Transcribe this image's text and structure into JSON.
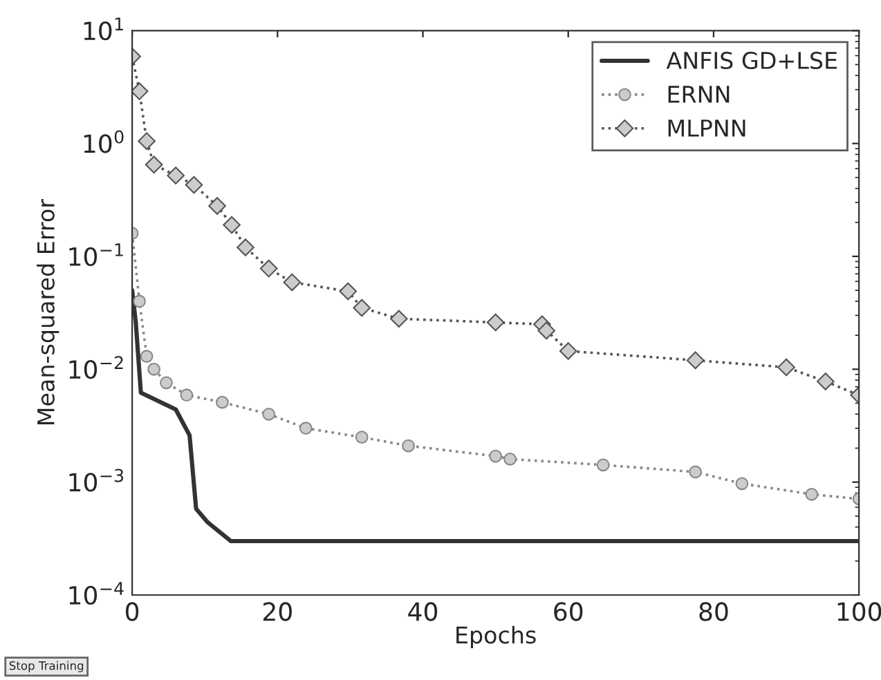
{
  "chart_data": {
    "type": "line",
    "xlabel": "Epochs",
    "ylabel": "Mean-squared Error",
    "log": "y",
    "xlim": [
      0,
      100
    ],
    "xticks": [
      0,
      20,
      40,
      60,
      80,
      100
    ],
    "ylim": [
      0.0001,
      10
    ],
    "yticks": [
      {
        "value": 0.0001,
        "label": "10$^{−4}$"
      },
      {
        "value": 0.001,
        "label": "10$^{−3}$"
      },
      {
        "value": 0.01,
        "label": "10$^{−2}$"
      },
      {
        "value": 0.1,
        "label": "10$^{−1}$"
      },
      {
        "value": 1,
        "label": "10$^{0}$"
      },
      {
        "value": 10,
        "label": "10$^{1}$"
      }
    ],
    "grid": false,
    "legend": "top right",
    "series": [
      {
        "name": "ANFIS GD+LSE",
        "color": "#333333",
        "marker": "none",
        "line_style": "solid",
        "x": [
          0,
          0.5,
          1.2,
          6,
          7.9,
          8.8,
          10.4,
          13.6,
          20,
          40,
          60,
          80,
          100
        ],
        "values": [
          0.05,
          0.026,
          0.0062,
          0.0044,
          0.0026,
          0.00058,
          0.00044,
          0.0003,
          0.0003,
          0.0003,
          0.0003,
          0.0003,
          0.0003
        ]
      },
      {
        "name": "ERNN",
        "color": "#888888",
        "marker": "circle",
        "line_style": "dotted",
        "x": [
          0,
          1,
          2,
          3,
          4.7,
          7.5,
          12.4,
          18.8,
          23.9,
          31.6,
          38,
          50,
          52,
          64.8,
          77.5,
          83.9,
          93.5,
          100
        ],
        "values": [
          0.16,
          0.04,
          0.013,
          0.01,
          0.0076,
          0.0059,
          0.0051,
          0.004,
          0.003,
          0.0025,
          0.0021,
          0.0017,
          0.0016,
          0.00142,
          0.00123,
          0.00097,
          0.00078,
          0.00071
        ]
      },
      {
        "name": "MLPNN",
        "color": "#555555",
        "marker": "diamond",
        "line_style": "dotted",
        "x": [
          0,
          1,
          2,
          3,
          6,
          8.5,
          11.7,
          13.7,
          15.6,
          18.8,
          22,
          29.7,
          31.6,
          36.7,
          50,
          56.4,
          57,
          60,
          77.5,
          90,
          95.4,
          100
        ],
        "values": [
          5.9,
          2.9,
          1.05,
          0.65,
          0.52,
          0.43,
          0.28,
          0.19,
          0.12,
          0.078,
          0.059,
          0.049,
          0.035,
          0.028,
          0.026,
          0.025,
          0.022,
          0.0145,
          0.012,
          0.0104,
          0.0078,
          0.0059
        ]
      }
    ],
    "annotations": [
      "Stop Training"
    ]
  }
}
